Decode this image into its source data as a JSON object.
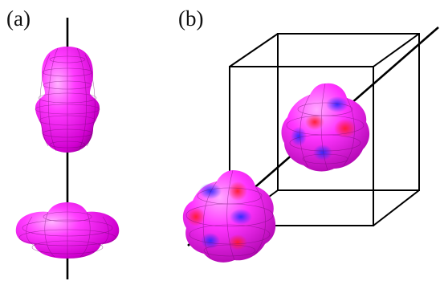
{
  "panels": [
    {
      "label": "(a)"
    },
    {
      "label": "(b)"
    }
  ],
  "colors": {
    "orbital_magenta": "#ff2cff",
    "orbital_shadow": "#b300b3",
    "lobe_red": "#ff2a3a",
    "lobe_blue": "#3a3aff",
    "lines": "#000000"
  },
  "icons": [
    "dz2-orbital-shape",
    "cubic-harmonic-shape",
    "cube-frame",
    "symmetry-axis"
  ]
}
